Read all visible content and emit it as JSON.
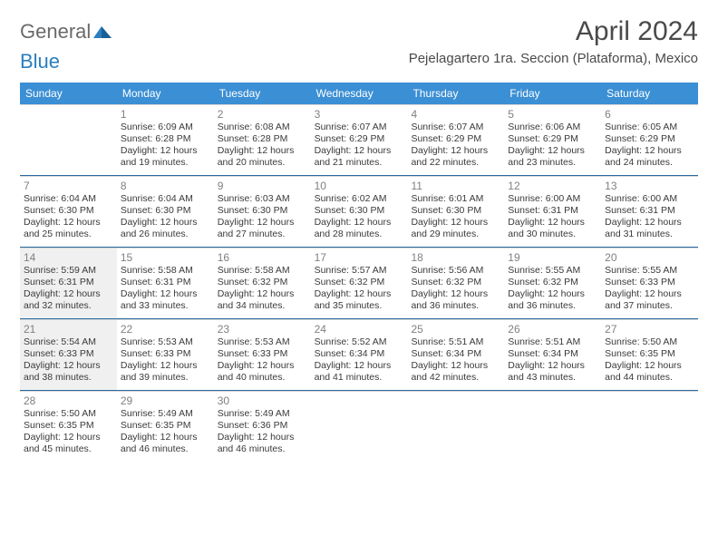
{
  "logo": {
    "part1": "General",
    "part2": "Blue"
  },
  "title": "April 2024",
  "location": "Pejelagartero 1ra. Seccion (Plataforma), Mexico",
  "colors": {
    "header_bg": "#3b8fd4",
    "header_text": "#ffffff",
    "week_divider": "#2a6aa0",
    "cell_border": "#d8d8d8",
    "shaded_bg": "#f0f0f0",
    "text": "#3a3a3a",
    "daynum": "#808080",
    "logo_gray": "#6a6a6a",
    "logo_blue": "#2a7fbf"
  },
  "day_headers": [
    "Sunday",
    "Monday",
    "Tuesday",
    "Wednesday",
    "Thursday",
    "Friday",
    "Saturday"
  ],
  "weeks": [
    [
      {
        "empty": true
      },
      {
        "day": "1",
        "sunrise": "Sunrise: 6:09 AM",
        "sunset": "Sunset: 6:28 PM",
        "d1": "Daylight: 12 hours",
        "d2": "and 19 minutes."
      },
      {
        "day": "2",
        "sunrise": "Sunrise: 6:08 AM",
        "sunset": "Sunset: 6:28 PM",
        "d1": "Daylight: 12 hours",
        "d2": "and 20 minutes."
      },
      {
        "day": "3",
        "sunrise": "Sunrise: 6:07 AM",
        "sunset": "Sunset: 6:29 PM",
        "d1": "Daylight: 12 hours",
        "d2": "and 21 minutes."
      },
      {
        "day": "4",
        "sunrise": "Sunrise: 6:07 AM",
        "sunset": "Sunset: 6:29 PM",
        "d1": "Daylight: 12 hours",
        "d2": "and 22 minutes."
      },
      {
        "day": "5",
        "sunrise": "Sunrise: 6:06 AM",
        "sunset": "Sunset: 6:29 PM",
        "d1": "Daylight: 12 hours",
        "d2": "and 23 minutes."
      },
      {
        "day": "6",
        "sunrise": "Sunrise: 6:05 AM",
        "sunset": "Sunset: 6:29 PM",
        "d1": "Daylight: 12 hours",
        "d2": "and 24 minutes."
      }
    ],
    [
      {
        "day": "7",
        "sunrise": "Sunrise: 6:04 AM",
        "sunset": "Sunset: 6:30 PM",
        "d1": "Daylight: 12 hours",
        "d2": "and 25 minutes."
      },
      {
        "day": "8",
        "sunrise": "Sunrise: 6:04 AM",
        "sunset": "Sunset: 6:30 PM",
        "d1": "Daylight: 12 hours",
        "d2": "and 26 minutes."
      },
      {
        "day": "9",
        "sunrise": "Sunrise: 6:03 AM",
        "sunset": "Sunset: 6:30 PM",
        "d1": "Daylight: 12 hours",
        "d2": "and 27 minutes."
      },
      {
        "day": "10",
        "sunrise": "Sunrise: 6:02 AM",
        "sunset": "Sunset: 6:30 PM",
        "d1": "Daylight: 12 hours",
        "d2": "and 28 minutes."
      },
      {
        "day": "11",
        "sunrise": "Sunrise: 6:01 AM",
        "sunset": "Sunset: 6:30 PM",
        "d1": "Daylight: 12 hours",
        "d2": "and 29 minutes."
      },
      {
        "day": "12",
        "sunrise": "Sunrise: 6:00 AM",
        "sunset": "Sunset: 6:31 PM",
        "d1": "Daylight: 12 hours",
        "d2": "and 30 minutes."
      },
      {
        "day": "13",
        "sunrise": "Sunrise: 6:00 AM",
        "sunset": "Sunset: 6:31 PM",
        "d1": "Daylight: 12 hours",
        "d2": "and 31 minutes."
      }
    ],
    [
      {
        "day": "14",
        "shaded": true,
        "sunrise": "Sunrise: 5:59 AM",
        "sunset": "Sunset: 6:31 PM",
        "d1": "Daylight: 12 hours",
        "d2": "and 32 minutes."
      },
      {
        "day": "15",
        "sunrise": "Sunrise: 5:58 AM",
        "sunset": "Sunset: 6:31 PM",
        "d1": "Daylight: 12 hours",
        "d2": "and 33 minutes."
      },
      {
        "day": "16",
        "sunrise": "Sunrise: 5:58 AM",
        "sunset": "Sunset: 6:32 PM",
        "d1": "Daylight: 12 hours",
        "d2": "and 34 minutes."
      },
      {
        "day": "17",
        "sunrise": "Sunrise: 5:57 AM",
        "sunset": "Sunset: 6:32 PM",
        "d1": "Daylight: 12 hours",
        "d2": "and 35 minutes."
      },
      {
        "day": "18",
        "sunrise": "Sunrise: 5:56 AM",
        "sunset": "Sunset: 6:32 PM",
        "d1": "Daylight: 12 hours",
        "d2": "and 36 minutes."
      },
      {
        "day": "19",
        "sunrise": "Sunrise: 5:55 AM",
        "sunset": "Sunset: 6:32 PM",
        "d1": "Daylight: 12 hours",
        "d2": "and 36 minutes."
      },
      {
        "day": "20",
        "sunrise": "Sunrise: 5:55 AM",
        "sunset": "Sunset: 6:33 PM",
        "d1": "Daylight: 12 hours",
        "d2": "and 37 minutes."
      }
    ],
    [
      {
        "day": "21",
        "shaded": true,
        "sunrise": "Sunrise: 5:54 AM",
        "sunset": "Sunset: 6:33 PM",
        "d1": "Daylight: 12 hours",
        "d2": "and 38 minutes."
      },
      {
        "day": "22",
        "sunrise": "Sunrise: 5:53 AM",
        "sunset": "Sunset: 6:33 PM",
        "d1": "Daylight: 12 hours",
        "d2": "and 39 minutes."
      },
      {
        "day": "23",
        "sunrise": "Sunrise: 5:53 AM",
        "sunset": "Sunset: 6:33 PM",
        "d1": "Daylight: 12 hours",
        "d2": "and 40 minutes."
      },
      {
        "day": "24",
        "sunrise": "Sunrise: 5:52 AM",
        "sunset": "Sunset: 6:34 PM",
        "d1": "Daylight: 12 hours",
        "d2": "and 41 minutes."
      },
      {
        "day": "25",
        "sunrise": "Sunrise: 5:51 AM",
        "sunset": "Sunset: 6:34 PM",
        "d1": "Daylight: 12 hours",
        "d2": "and 42 minutes."
      },
      {
        "day": "26",
        "sunrise": "Sunrise: 5:51 AM",
        "sunset": "Sunset: 6:34 PM",
        "d1": "Daylight: 12 hours",
        "d2": "and 43 minutes."
      },
      {
        "day": "27",
        "sunrise": "Sunrise: 5:50 AM",
        "sunset": "Sunset: 6:35 PM",
        "d1": "Daylight: 12 hours",
        "d2": "and 44 minutes."
      }
    ],
    [
      {
        "day": "28",
        "sunrise": "Sunrise: 5:50 AM",
        "sunset": "Sunset: 6:35 PM",
        "d1": "Daylight: 12 hours",
        "d2": "and 45 minutes."
      },
      {
        "day": "29",
        "sunrise": "Sunrise: 5:49 AM",
        "sunset": "Sunset: 6:35 PM",
        "d1": "Daylight: 12 hours",
        "d2": "and 46 minutes."
      },
      {
        "day": "30",
        "sunrise": "Sunrise: 5:49 AM",
        "sunset": "Sunset: 6:36 PM",
        "d1": "Daylight: 12 hours",
        "d2": "and 46 minutes."
      },
      {
        "empty": true
      },
      {
        "empty": true
      },
      {
        "empty": true
      },
      {
        "empty": true
      }
    ]
  ]
}
